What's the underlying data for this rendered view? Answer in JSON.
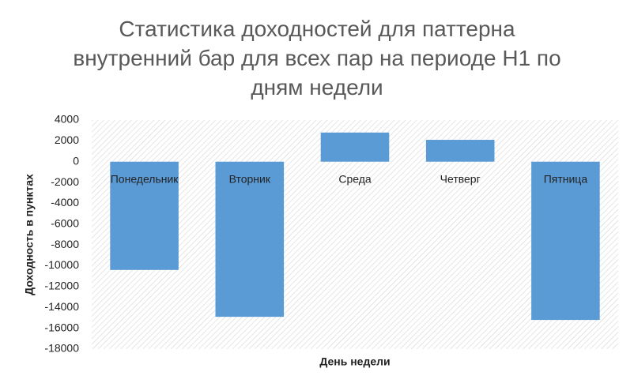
{
  "chart_data": {
    "type": "bar",
    "title": "Статистика доходностей для паттерна внутренний бар для всех пар на периоде H1 по дням недели",
    "x_label": "День недели",
    "y_label": "Доходность в пунктах",
    "categories": [
      "Понедельник",
      "Вторник",
      "Среда",
      "Четверг",
      "Пятница"
    ],
    "values": [
      -10400,
      -14900,
      2800,
      2100,
      -15200
    ],
    "color": "#5b9bd5",
    "ylim": [
      -18000,
      4000
    ],
    "yticks": [
      -18000,
      -16000,
      -14000,
      -12000,
      -10000,
      -8000,
      -6000,
      -4000,
      -2000,
      0,
      2000,
      4000
    ],
    "grid": false
  }
}
